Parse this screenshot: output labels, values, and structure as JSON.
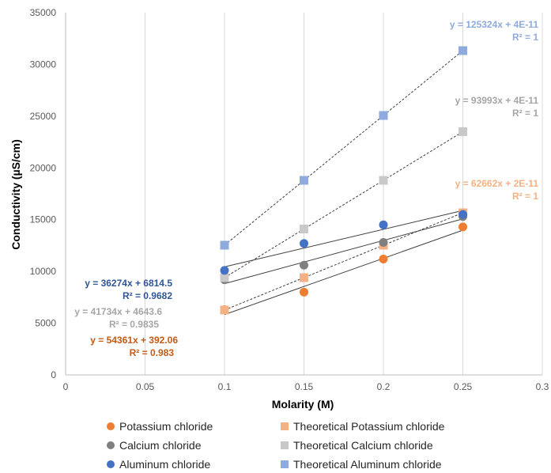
{
  "chart_data": {
    "type": "scatter",
    "xlabel": "Molarity (M)",
    "ylabel": "Conductivity (µS/cm)",
    "xlim": [
      0,
      0.3
    ],
    "ylim": [
      0,
      35000
    ],
    "x_ticks": [
      "0",
      "0.05",
      "0.1",
      "0.15",
      "0.2",
      "0.25",
      "0.3"
    ],
    "y_ticks": [
      "0",
      "5000",
      "10000",
      "15000",
      "20000",
      "25000",
      "30000",
      "35000"
    ],
    "grid": "vertical",
    "legend_position": "bottom",
    "series": [
      {
        "name": "Potassium chloride",
        "marker": "circle",
        "color": "#ED7D31",
        "x": [
          0.1,
          0.15,
          0.2,
          0.25
        ],
        "y": [
          6300,
          8000,
          11200,
          14300
        ],
        "trendline": {
          "style": "solid",
          "slope": 54361,
          "intercept": 392.06,
          "equation": "y = 54361x + 392.06",
          "r2": "R² = 0.983"
        }
      },
      {
        "name": "Theoretical Potassium chloride",
        "marker": "square",
        "color": "#F4B183",
        "x": [
          0.1,
          0.15,
          0.2,
          0.25
        ],
        "y": [
          6266,
          9399,
          12532,
          15666
        ],
        "trendline": {
          "style": "dotted",
          "slope": 62662,
          "intercept": 0,
          "equation": "y = 62662x + 2E-11",
          "r2": "R² = 1"
        }
      },
      {
        "name": "Calcium chloride",
        "marker": "circle",
        "color": "#808080",
        "x": [
          0.1,
          0.15,
          0.2,
          0.25
        ],
        "y": [
          9200,
          10600,
          12800,
          15300
        ],
        "trendline": {
          "style": "solid",
          "slope": 41734,
          "intercept": 4643.6,
          "equation": "y = 41734x + 4643.6",
          "r2": "R² = 0.9835"
        }
      },
      {
        "name": "Theoretical Calcium chloride",
        "marker": "square",
        "color": "#C9C9C9",
        "x": [
          0.1,
          0.15,
          0.2,
          0.25
        ],
        "y": [
          9399,
          14099,
          18799,
          23498
        ],
        "trendline": {
          "style": "dotted",
          "slope": 93993,
          "intercept": 0,
          "equation": "y = 93993x + 4E-11",
          "r2": "R² = 1"
        }
      },
      {
        "name": "Aluminum chloride",
        "marker": "circle",
        "color": "#4472C4",
        "x": [
          0.1,
          0.15,
          0.2,
          0.25
        ],
        "y": [
          10100,
          12700,
          14500,
          15500
        ],
        "trendline": {
          "style": "solid",
          "slope": 36274,
          "intercept": 6814.5,
          "equation": "y = 36274x + 6814.5",
          "r2": "R² = 0.9682"
        }
      },
      {
        "name": "Theoretical Aluminum chloride",
        "marker": "square",
        "color": "#8FAADC",
        "x": [
          0.1,
          0.15,
          0.2,
          0.25
        ],
        "y": [
          12532,
          18799,
          25065,
          31331
        ],
        "trendline": {
          "style": "dotted",
          "slope": 125324,
          "intercept": 0,
          "equation": "y = 125324x + 4E-11",
          "r2": "R² = 1"
        }
      }
    ]
  }
}
